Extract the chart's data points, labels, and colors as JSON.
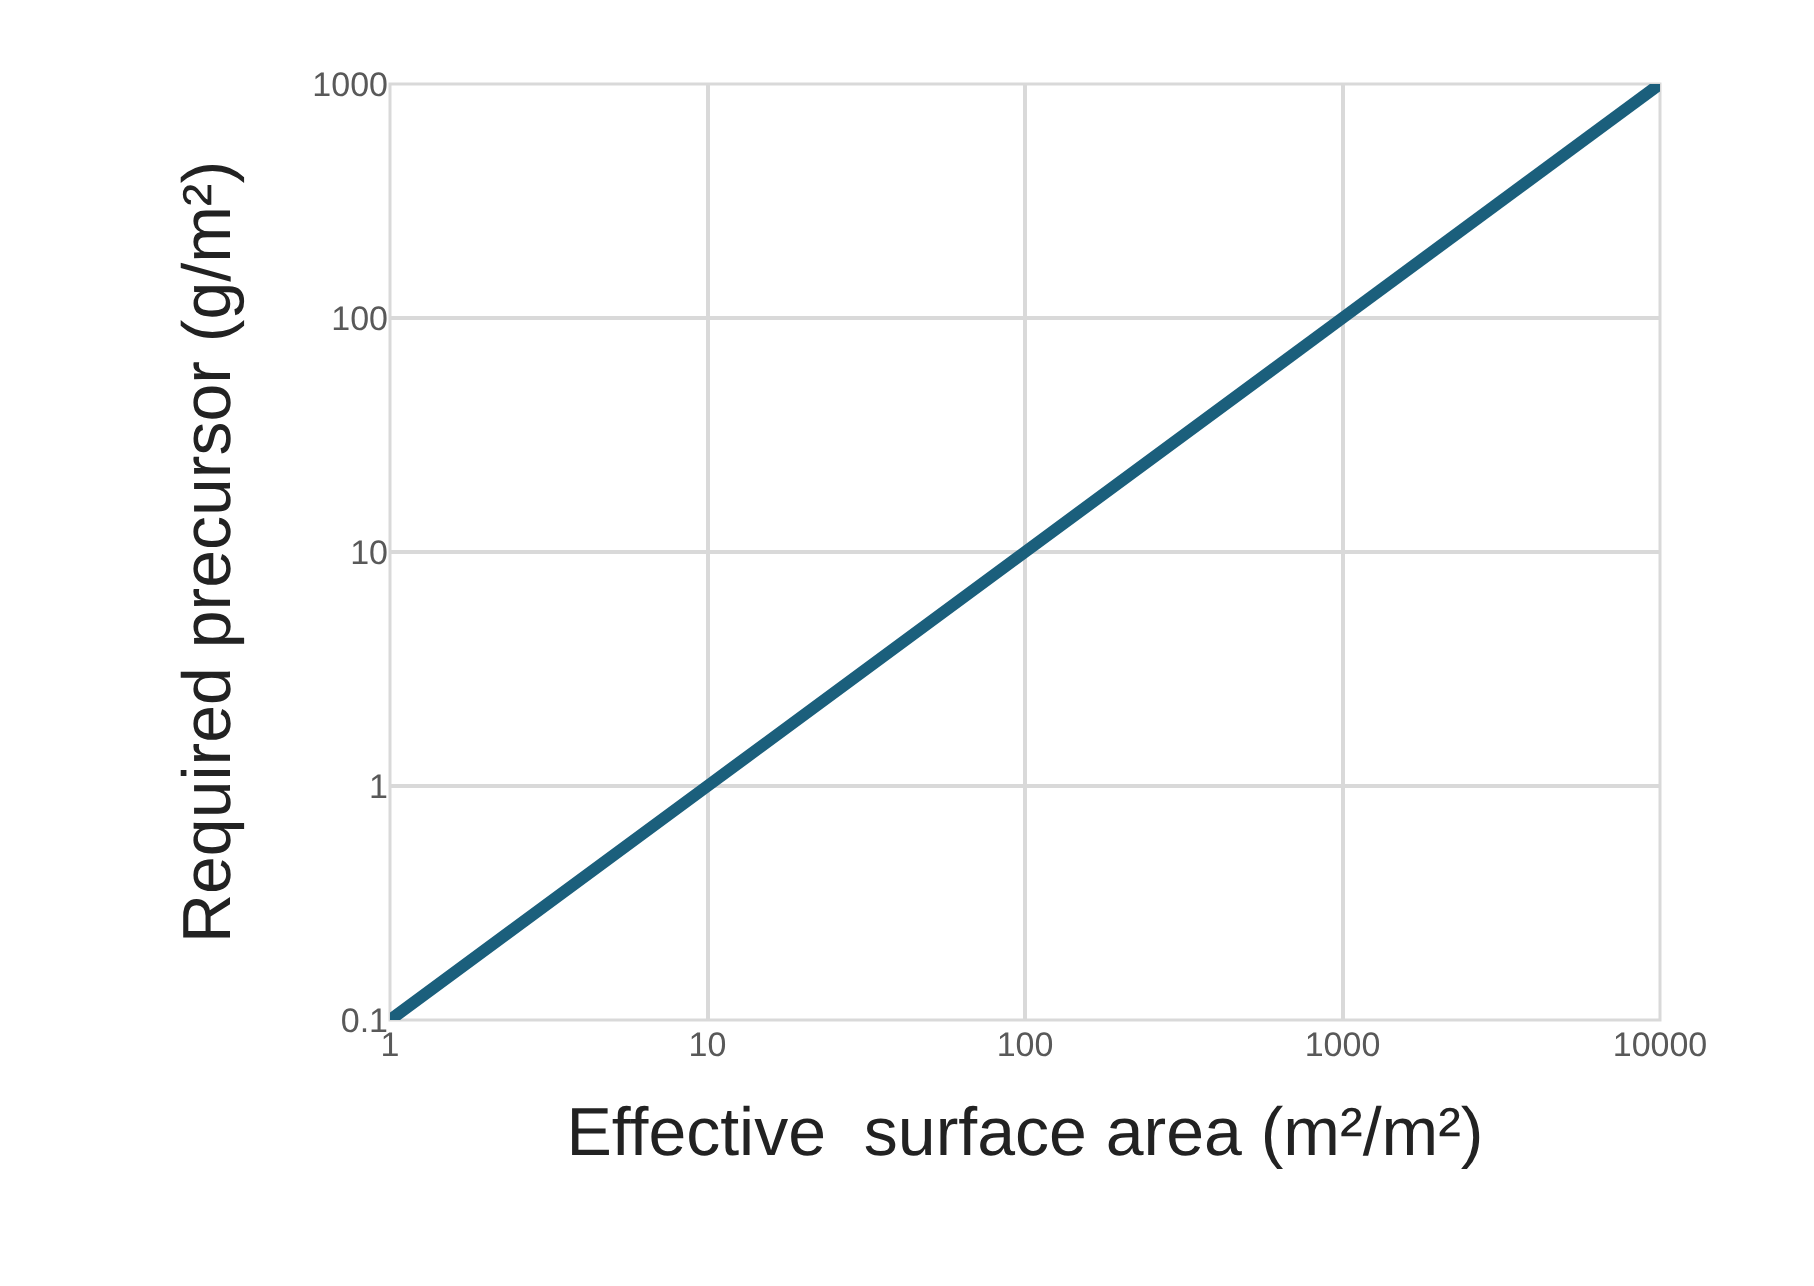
{
  "chart_data": {
    "type": "line",
    "xlabel": "Effective  surface area (m²/m²)",
    "ylabel": "Required precursor (g/m²)",
    "x": [
      1,
      10,
      100,
      1000,
      10000
    ],
    "series": [
      {
        "color": "#1b5f7c",
        "values": [
          0.1,
          1,
          10,
          100,
          1000
        ]
      }
    ],
    "log": "xy",
    "xlim": [
      1,
      10000
    ],
    "ylim": [
      0.1,
      1000
    ],
    "xticks": [
      1,
      10,
      100,
      1000,
      10000
    ],
    "yticks": [
      0.1,
      1,
      10,
      100,
      1000
    ],
    "grid": true,
    "legend": false,
    "marker": "none",
    "line_style": "solid"
  }
}
